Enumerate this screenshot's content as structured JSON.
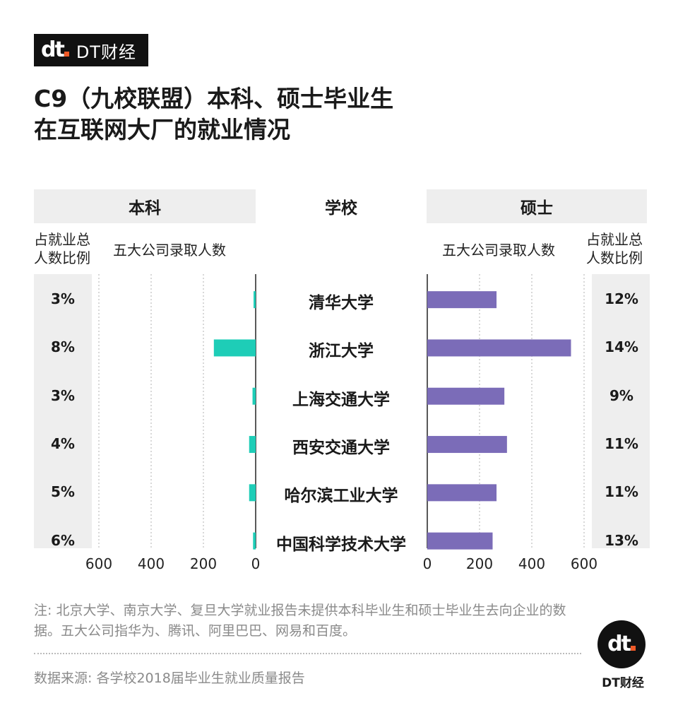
{
  "brand": {
    "logo_mark": "dt",
    "logo_text": "DT财经",
    "bottom_text": "DT财经"
  },
  "title": {
    "line1": "C9（九校联盟）本科、硕士毕业生",
    "line2": "在互联网大厂的就业情况"
  },
  "headers": {
    "left": "本科",
    "middle": "学校",
    "right": "硕士"
  },
  "subheaders": {
    "left_pct_line1": "占就业总",
    "left_pct_line2": "人数比例",
    "left_count": "五大公司录取人数",
    "right_count": "五大公司录取人数",
    "right_pct_line1": "占就业总",
    "right_pct_line2": "人数比例"
  },
  "chart_data": {
    "type": "bar",
    "categories": [
      "清华大学",
      "浙江大学",
      "上海交通大学",
      "西安交通大学",
      "哈尔滨工业大学",
      "中国科学技术大学"
    ],
    "series": [
      {
        "name": "本科",
        "values": [
          8,
          160,
          12,
          25,
          25,
          10
        ],
        "percent_labels": [
          "3%",
          "8%",
          "3%",
          "4%",
          "5%",
          "6%"
        ],
        "color": "#1ecdb7"
      },
      {
        "name": "硕士",
        "values": [
          265,
          550,
          295,
          305,
          265,
          250
        ],
        "percent_labels": [
          "12%",
          "14%",
          "9%",
          "11%",
          "11%",
          "13%"
        ],
        "color": "#7b6cb8"
      }
    ],
    "xlim": [
      0,
      600
    ],
    "ticks_left": [
      "600",
      "400",
      "200",
      "0"
    ],
    "ticks_right": [
      "0",
      "200",
      "400",
      "600"
    ],
    "grid": "vertical-dashed"
  },
  "note": "注: 北京大学、南京大学、复旦大学就业报告未提供本科毕业生和硕士毕业生去向企业的数据。五大公司指华为、腾讯、阿里巴巴、网易和百度。",
  "source": "数据来源: 各学校2018届毕业生就业质量报告"
}
